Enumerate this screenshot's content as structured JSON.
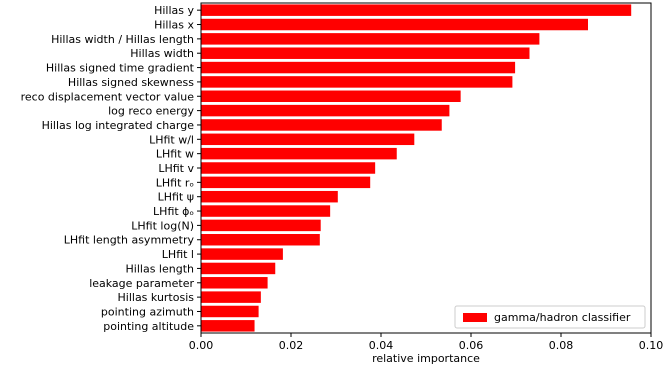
{
  "chart_data": {
    "type": "bar",
    "orientation": "horizontal",
    "xlabel": "relative importance",
    "ylabel": "",
    "xlim": [
      0.0,
      0.1
    ],
    "xticks": [
      "0.00",
      "0.02",
      "0.04",
      "0.06",
      "0.08",
      "0.10"
    ],
    "grid": false,
    "legend_position": "lower-right",
    "bar_color": "#ff0000",
    "series": [
      {
        "name": "gamma/hadron classifier",
        "categories": [
          "Hillas y",
          "Hillas x",
          "Hillas width / Hillas length",
          "Hillas width",
          "Hillas signed time gradient",
          "Hillas signed skewness",
          "reco displacement vector value",
          "log reco energy",
          "Hillas log integrated charge",
          "LHfit w/l",
          "LHfit w",
          "LHfit v",
          "LHfit rₒ",
          "LHfit ψ",
          "LHfit ϕₒ",
          "LHfit log(N)",
          "LHfit length asymmetry",
          "LHfit l",
          "Hillas length",
          "leakage parameter",
          "Hillas kurtosis",
          "pointing azimuth",
          "pointing altitude"
        ],
        "values": [
          0.0956,
          0.086,
          0.0752,
          0.073,
          0.0698,
          0.0692,
          0.0577,
          0.0552,
          0.0535,
          0.0474,
          0.0435,
          0.0387,
          0.0376,
          0.0304,
          0.0287,
          0.0266,
          0.0264,
          0.0182,
          0.0165,
          0.0148,
          0.0133,
          0.0128,
          0.0119
        ]
      }
    ]
  }
}
